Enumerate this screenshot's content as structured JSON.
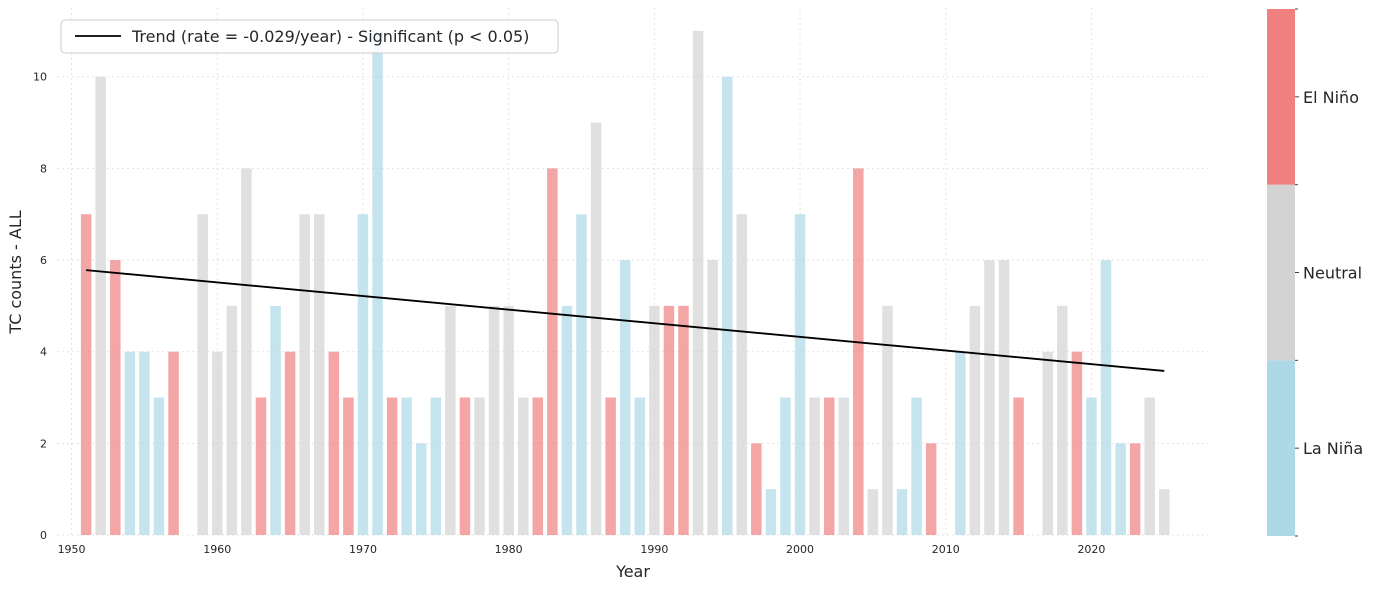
{
  "chart_data": {
    "type": "bar",
    "xlabel": "Year",
    "ylabel": "TC counts - ALL",
    "xlim": [
      1949,
      2028
    ],
    "ylim": [
      0,
      11.5
    ],
    "xticks": [
      1950,
      1960,
      1970,
      1980,
      1990,
      2000,
      2010,
      2020
    ],
    "yticks": [
      0,
      2,
      4,
      6,
      8,
      10
    ],
    "grid": true,
    "legend": {
      "placement": "top-left",
      "label": "Trend (rate = -0.029/year) - Significant (p < 0.05)"
    },
    "trend": {
      "x": [
        1951,
        2025
      ],
      "y": [
        5.78,
        3.58
      ],
      "color": "#000000"
    },
    "categories": {
      "E": "El Niño",
      "N": "Neutral",
      "L": "La Niña"
    },
    "colors": {
      "E": "#F08080",
      "N": "#D3D3D3",
      "L": "#ADD8E6"
    },
    "colorbar_order": [
      "L",
      "N",
      "E"
    ],
    "years": [
      1951,
      1952,
      1953,
      1954,
      1955,
      1956,
      1957,
      1959,
      1960,
      1961,
      1962,
      1963,
      1964,
      1965,
      1966,
      1967,
      1968,
      1969,
      1970,
      1971,
      1972,
      1973,
      1974,
      1975,
      1976,
      1977,
      1978,
      1979,
      1980,
      1981,
      1982,
      1983,
      1984,
      1985,
      1986,
      1987,
      1988,
      1989,
      1990,
      1991,
      1992,
      1993,
      1994,
      1995,
      1996,
      1997,
      1998,
      1999,
      2000,
      2001,
      2002,
      2003,
      2004,
      2005,
      2006,
      2007,
      2008,
      2009,
      2011,
      2012,
      2013,
      2014,
      2015,
      2017,
      2018,
      2019,
      2020,
      2021,
      2022,
      2023,
      2024,
      2025
    ],
    "values": [
      7,
      10,
      6,
      4,
      4,
      3,
      4,
      7,
      4,
      5,
      8,
      3,
      5,
      4,
      7,
      7,
      4,
      3,
      7,
      11,
      3,
      3,
      2,
      3,
      5,
      3,
      3,
      5,
      5,
      3,
      3,
      8,
      5,
      7,
      9,
      3,
      6,
      3,
      5,
      5,
      5,
      11,
      6,
      10,
      7,
      2,
      1,
      3,
      7,
      3,
      3,
      3,
      8,
      1,
      5,
      1,
      3,
      2,
      4,
      5,
      6,
      6,
      3,
      4,
      5,
      4,
      3,
      6,
      2,
      2,
      3,
      1
    ],
    "phase": [
      "E",
      "N",
      "E",
      "L",
      "L",
      "L",
      "E",
      "N",
      "N",
      "N",
      "N",
      "E",
      "L",
      "E",
      "N",
      "N",
      "E",
      "E",
      "L",
      "L",
      "E",
      "L",
      "L",
      "L",
      "N",
      "E",
      "N",
      "N",
      "N",
      "N",
      "E",
      "E",
      "L",
      "L",
      "N",
      "E",
      "L",
      "L",
      "N",
      "E",
      "E",
      "N",
      "N",
      "L",
      "N",
      "E",
      "L",
      "L",
      "L",
      "N",
      "E",
      "N",
      "E",
      "N",
      "N",
      "L",
      "L",
      "E",
      "L",
      "N",
      "N",
      "N",
      "E",
      "N",
      "N",
      "E",
      "L",
      "L",
      "L",
      "E",
      "N",
      "N"
    ]
  }
}
